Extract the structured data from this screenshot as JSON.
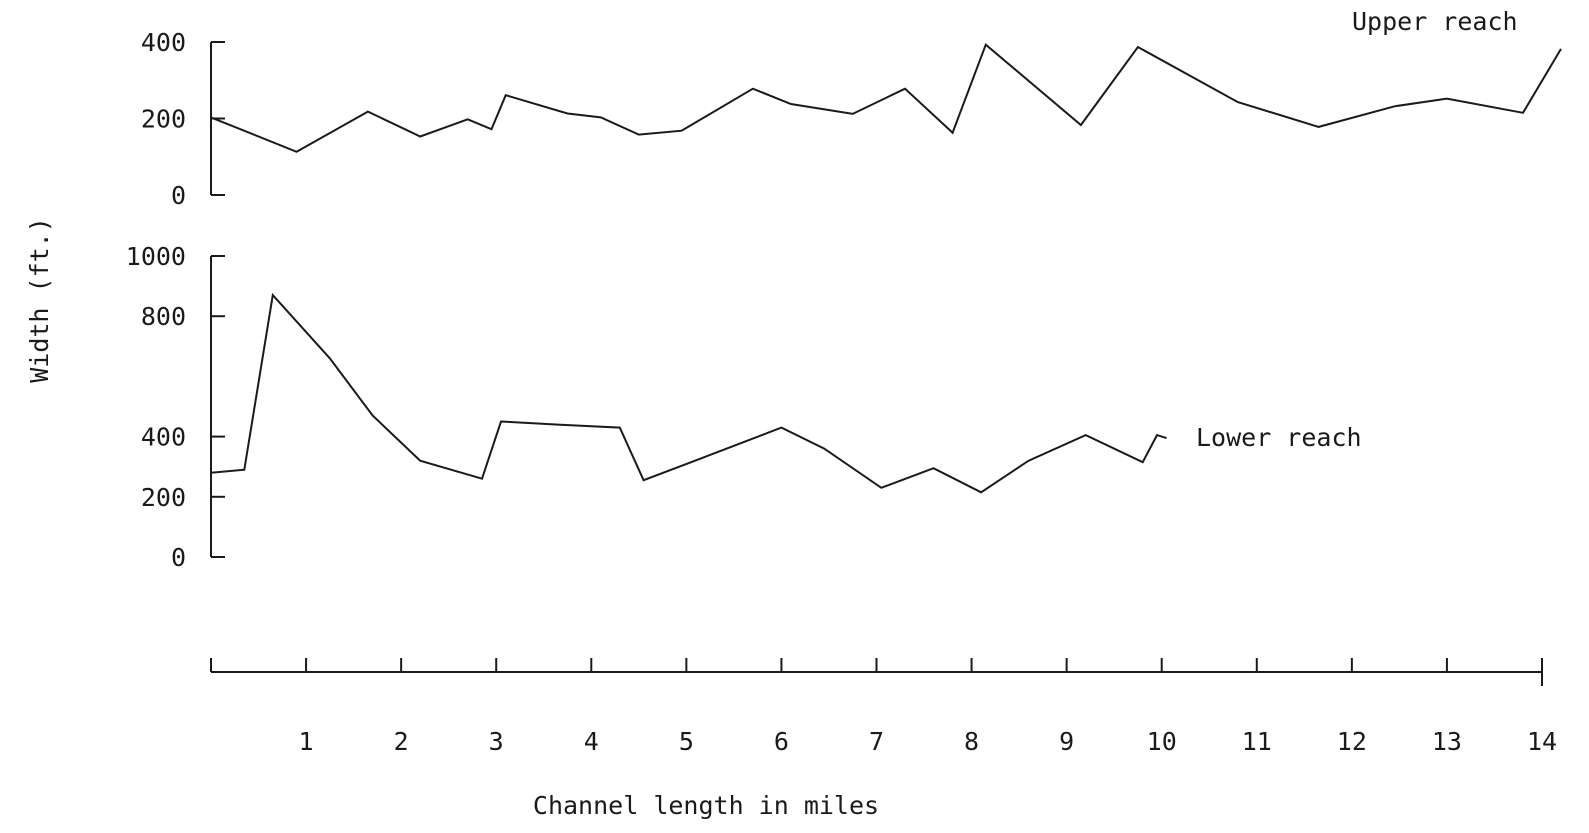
{
  "chart_data": {
    "type": "line",
    "xlabel": "Channel length in miles",
    "ylabel": "Width (ft.)",
    "x_axis": {
      "range": [
        0,
        14
      ],
      "tick_labels": [
        "1",
        "2",
        "3",
        "4",
        "5",
        "6",
        "7",
        "8",
        "9",
        "10",
        "11",
        "12",
        "13",
        "14"
      ]
    },
    "panels": [
      {
        "name": "upper",
        "ylim": [
          0,
          400
        ],
        "y_tick_labels": [
          "400",
          "200",
          "0"
        ],
        "series": [
          {
            "name": "Upper reach",
            "x": [
              0,
              0.9,
              1.65,
              2.2,
              2.7,
              2.95,
              3.1,
              3.75,
              4.1,
              4.5,
              4.95,
              5.7,
              6.1,
              6.75,
              7.3,
              7.8,
              8.15,
              9.15,
              9.75,
              10.8,
              11.65,
              12.45,
              13.0,
              13.8,
              14.2
            ],
            "y": [
              203,
              113,
              218,
              153,
              198,
              172,
              261,
              213,
              203,
              158,
              168,
              278,
              238,
              212,
              278,
              163,
              393,
              183,
              387,
              243,
              178,
              232,
              252,
              215,
              382
            ]
          }
        ]
      },
      {
        "name": "lower",
        "ylim": [
          0,
          1000
        ],
        "y_tick_labels": [
          "1000",
          "800",
          "400",
          "200",
          "0"
        ],
        "series": [
          {
            "name": "Lower reach",
            "x": [
              0,
              0.35,
              0.65,
              1.25,
              1.7,
              2.2,
              2.85,
              3.05,
              3.65,
              4.3,
              4.55,
              5.05,
              6.0,
              6.45,
              7.05,
              7.6,
              8.1,
              8.6,
              9.2,
              9.8,
              9.95,
              10.05
            ],
            "y": [
              280,
              290,
              870,
              660,
              470,
              320,
              260,
              450,
              440,
              430,
              255,
              315,
              430,
              360,
              230,
              295,
              215,
              320,
              405,
              315,
              405,
              395
            ]
          }
        ]
      }
    ]
  }
}
